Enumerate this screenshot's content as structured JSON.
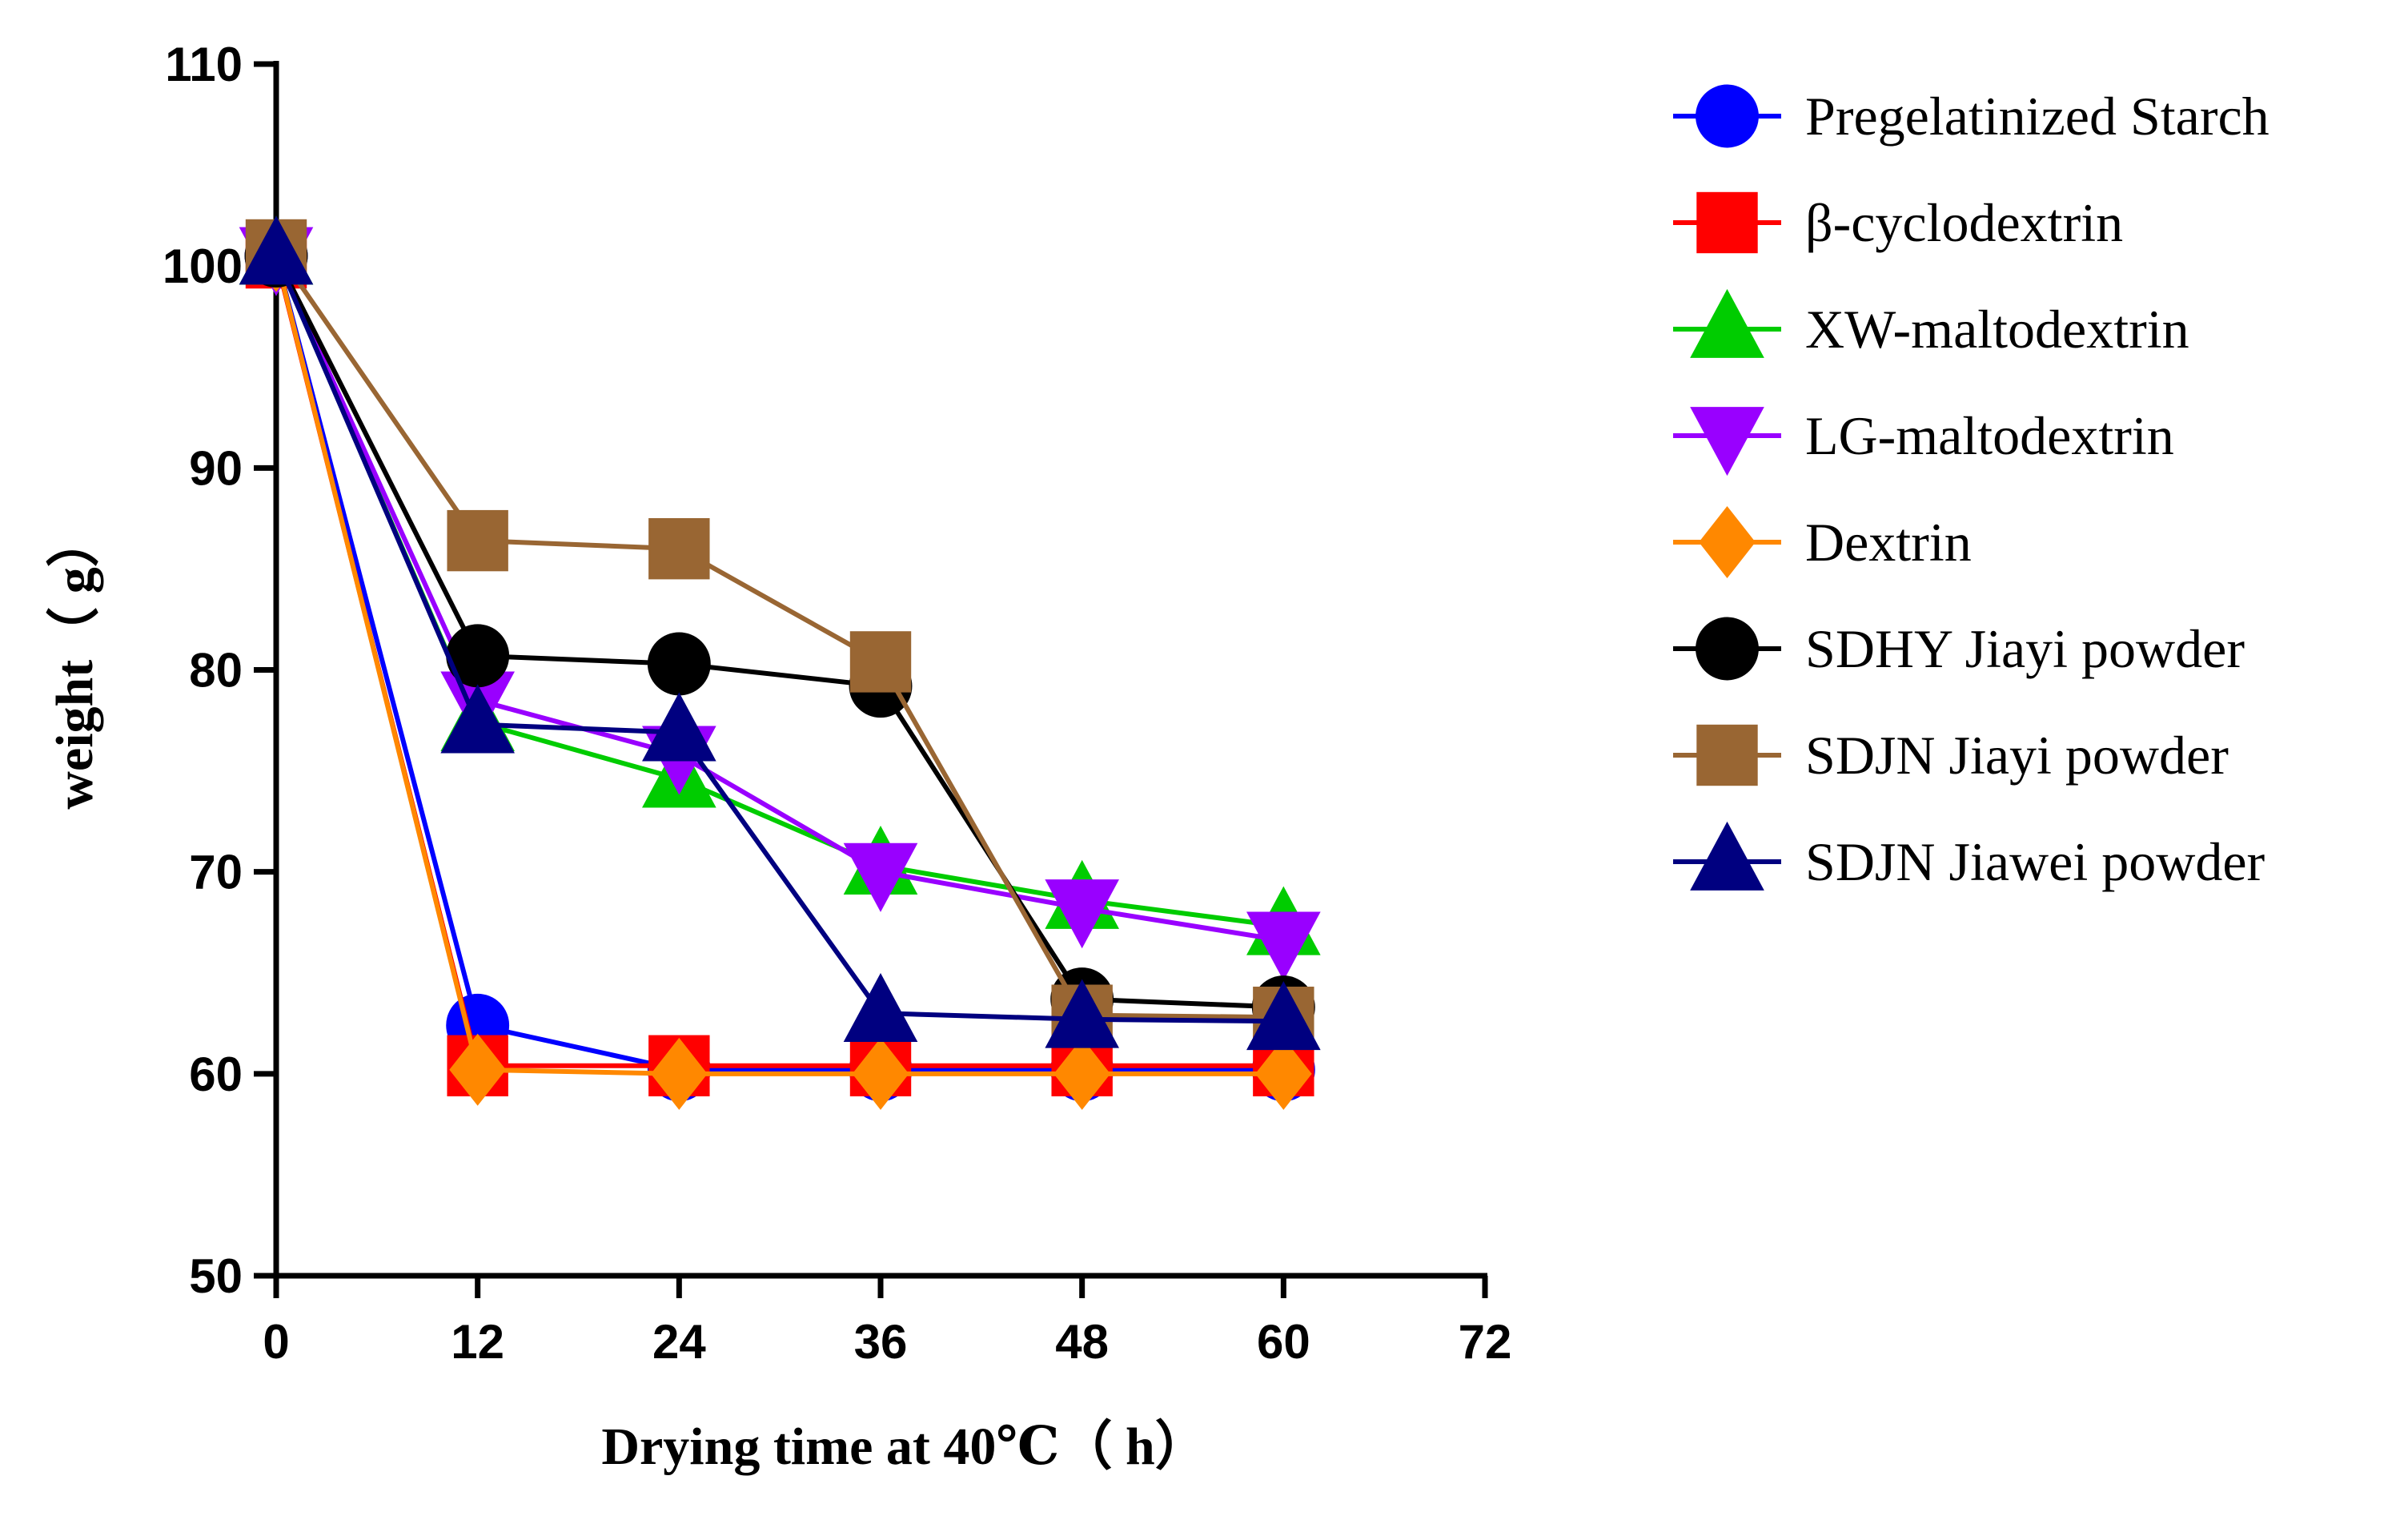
{
  "chart_data": {
    "type": "line",
    "title": "",
    "xlabel": "Drying time at 40℃（ h）",
    "ylabel": "weight（ g）",
    "xlim": [
      0,
      72
    ],
    "ylim": [
      50,
      110
    ],
    "xticks": [
      0,
      12,
      24,
      36,
      48,
      60,
      72
    ],
    "yticks": [
      50,
      60,
      70,
      80,
      90,
      100,
      110
    ],
    "grid": false,
    "legend_position": "right",
    "x": [
      0,
      12,
      24,
      36,
      48,
      60
    ],
    "series": [
      {
        "name": "Pregelatinized Starch",
        "color": "#0000ff",
        "marker": "circle",
        "values": [
          100.5,
          62.4,
          60.2,
          60.2,
          60.2,
          60.2
        ]
      },
      {
        "name": "β-cyclodextrin",
        "color": "#ff0000",
        "marker": "square",
        "values": [
          100.4,
          60.4,
          60.4,
          60.4,
          60.4,
          60.4
        ]
      },
      {
        "name": "XW-maltodextrin",
        "color": "#00cc00",
        "marker": "triangle-up",
        "values": [
          100.5,
          77.4,
          74.6,
          70.3,
          68.6,
          67.3
        ]
      },
      {
        "name": "LG-maltodextrin",
        "color": "#9900ff",
        "marker": "triangle-down",
        "values": [
          100.5,
          78.5,
          75.8,
          70.0,
          68.2,
          66.6
        ]
      },
      {
        "name": "Dextrin",
        "color": "#ff8800",
        "marker": "diamond",
        "values": [
          100.5,
          60.2,
          60.0,
          60.0,
          60.0,
          60.0
        ]
      },
      {
        "name": "SDHY Jiayi powder",
        "color": "#000000",
        "marker": "circle",
        "values": [
          100.5,
          80.7,
          80.3,
          79.2,
          63.7,
          63.3
        ]
      },
      {
        "name": "SDJN Jiayi powder",
        "color": "#996633",
        "marker": "square",
        "values": [
          100.8,
          86.4,
          86.0,
          80.4,
          62.9,
          62.8
        ]
      },
      {
        "name": "SDJN Jiawei powder",
        "color": "#000080",
        "marker": "triangle-up",
        "values": [
          100.5,
          77.3,
          76.9,
          63.0,
          62.7,
          62.6
        ]
      }
    ]
  }
}
